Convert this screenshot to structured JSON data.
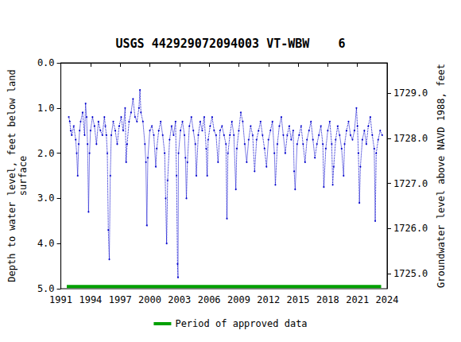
{
  "chart_data": {
    "type": "line",
    "title": "USGS 442929072094003 VT-WBW    6",
    "ylabel": "Depth to water level, feet below land\nsurface",
    "y2label": "Groundwater level above NAVD 1988, feet",
    "xlim": [
      1991,
      2024
    ],
    "xticks": [
      1991,
      1994,
      1997,
      2000,
      2003,
      2006,
      2009,
      2012,
      2015,
      2018,
      2021,
      2024
    ],
    "ylim": [
      5,
      0
    ],
    "yticks": [
      {
        "value": 0,
        "label": "0.0"
      },
      {
        "value": 1,
        "label": "1.0"
      },
      {
        "value": 2,
        "label": "2.0"
      },
      {
        "value": 3,
        "label": "3.0"
      },
      {
        "value": 4,
        "label": "4.0"
      },
      {
        "value": 5,
        "label": "5.0"
      }
    ],
    "y2lim": [
      1724.67,
      1729.67
    ],
    "y2ticks": [
      {
        "value": 1725,
        "label": "1725.0"
      },
      {
        "value": 1726,
        "label": "1726.0"
      },
      {
        "value": 1727,
        "label": "1727.0"
      },
      {
        "value": 1728,
        "label": "1728.0"
      },
      {
        "value": 1729,
        "label": "1729.0"
      }
    ],
    "grid": false,
    "legend": "bottom",
    "series": [
      {
        "color": "#0000cc",
        "marker": "circle",
        "line_style": "dotted",
        "x": [
          1991.8,
          1991.9,
          1992.0,
          1992.1,
          1992.3,
          1992.5,
          1992.6,
          1992.7,
          1992.8,
          1992.9,
          1993.0,
          1993.2,
          1993.4,
          1993.5,
          1993.6,
          1993.7,
          1993.8,
          1993.9,
          1994.0,
          1994.2,
          1994.4,
          1994.6,
          1994.8,
          1995.0,
          1995.2,
          1995.4,
          1995.5,
          1995.6,
          1995.7,
          1995.8,
          1995.9,
          1996.0,
          1996.1,
          1996.3,
          1996.5,
          1996.7,
          1996.9,
          1997.1,
          1997.3,
          1997.5,
          1997.6,
          1997.7,
          1997.9,
          1998.1,
          1998.3,
          1998.5,
          1998.7,
          1998.9,
          1999.0,
          1999.1,
          1999.3,
          1999.5,
          1999.6,
          1999.7,
          1999.8,
          2000.0,
          2000.2,
          2000.4,
          2000.6,
          2000.7,
          2000.9,
          2001.1,
          2001.3,
          2001.5,
          2001.6,
          2001.7,
          2001.8,
          2002.0,
          2002.2,
          2002.4,
          2002.6,
          2002.7,
          2002.8,
          2002.85,
          2002.9,
          2003.1,
          2003.3,
          2003.5,
          2003.6,
          2003.7,
          2003.8,
          2004.0,
          2004.2,
          2004.4,
          2004.6,
          2004.7,
          2004.9,
          2005.1,
          2005.3,
          2005.5,
          2005.7,
          2005.8,
          2005.9,
          2006.1,
          2006.3,
          2006.5,
          2006.7,
          2006.9,
          2007.1,
          2007.3,
          2007.5,
          2007.7,
          2007.8,
          2007.9,
          2008.1,
          2008.3,
          2008.5,
          2008.7,
          2008.8,
          2009.0,
          2009.2,
          2009.4,
          2009.6,
          2009.8,
          2010.0,
          2010.2,
          2010.4,
          2010.6,
          2010.8,
          2011.0,
          2011.2,
          2011.4,
          2011.6,
          2011.8,
          2012.0,
          2012.2,
          2012.4,
          2012.6,
          2012.7,
          2012.9,
          2013.1,
          2013.3,
          2013.5,
          2013.7,
          2013.9,
          2014.1,
          2014.3,
          2014.5,
          2014.6,
          2014.7,
          2014.9,
          2015.1,
          2015.3,
          2015.5,
          2015.7,
          2015.9,
          2016.1,
          2016.3,
          2016.5,
          2016.7,
          2016.9,
          2017.1,
          2017.3,
          2017.5,
          2017.6,
          2017.8,
          2018.0,
          2018.2,
          2018.4,
          2018.5,
          2018.6,
          2018.8,
          2019.0,
          2019.2,
          2019.4,
          2019.6,
          2019.7,
          2019.9,
          2020.1,
          2020.3,
          2020.5,
          2020.7,
          2020.9,
          2021.0,
          2021.1,
          2021.2,
          2021.3,
          2021.5,
          2021.7,
          2021.9,
          2022.1,
          2022.3,
          2022.5,
          2022.7,
          2022.8,
          2022.9,
          2023.1,
          2023.3,
          2023.5
        ],
        "values": [
          1.2,
          1.3,
          1.5,
          1.6,
          1.4,
          1.7,
          2.0,
          2.5,
          1.8,
          1.5,
          1.3,
          1.1,
          1.6,
          0.9,
          1.2,
          1.8,
          3.3,
          2.0,
          1.5,
          1.2,
          1.4,
          1.8,
          1.3,
          1.5,
          1.6,
          1.2,
          1.4,
          1.6,
          2.0,
          3.7,
          4.35,
          2.5,
          1.6,
          1.3,
          1.5,
          1.8,
          1.4,
          1.2,
          1.5,
          1.0,
          2.2,
          1.8,
          1.3,
          1.1,
          0.8,
          1.2,
          1.3,
          1.0,
          0.6,
          1.1,
          1.3,
          1.8,
          2.2,
          3.6,
          2.1,
          1.5,
          1.4,
          1.6,
          2.3,
          1.9,
          1.5,
          1.3,
          1.6,
          2.0,
          3.0,
          4.0,
          2.6,
          1.7,
          1.4,
          1.6,
          1.3,
          2.5,
          4.45,
          4.75,
          2.0,
          1.5,
          1.3,
          1.6,
          2.1,
          3.0,
          2.2,
          1.4,
          1.2,
          1.5,
          1.8,
          2.5,
          1.6,
          1.3,
          1.5,
          1.2,
          1.9,
          2.5,
          1.7,
          1.4,
          1.2,
          1.5,
          1.6,
          2.2,
          1.5,
          1.4,
          1.6,
          1.8,
          3.45,
          2.0,
          1.6,
          1.3,
          1.6,
          2.8,
          1.9,
          1.5,
          1.1,
          1.3,
          1.8,
          2.2,
          1.7,
          1.4,
          1.6,
          2.4,
          1.7,
          1.5,
          1.3,
          1.6,
          1.9,
          2.3,
          1.7,
          1.5,
          1.3,
          2.0,
          2.7,
          1.8,
          1.4,
          1.2,
          1.6,
          2.0,
          1.6,
          1.4,
          1.7,
          1.5,
          2.4,
          2.8,
          1.8,
          1.6,
          1.4,
          1.8,
          2.2,
          1.7,
          1.5,
          1.3,
          1.7,
          2.1,
          1.8,
          1.6,
          1.4,
          1.8,
          2.75,
          1.9,
          1.5,
          1.3,
          1.8,
          2.7,
          2.3,
          1.7,
          1.4,
          1.6,
          1.9,
          2.5,
          1.8,
          1.5,
          1.3,
          1.6,
          1.7,
          1.5,
          1.0,
          1.4,
          2.0,
          3.1,
          2.3,
          1.7,
          1.5,
          1.8,
          1.4,
          1.2,
          1.6,
          1.9,
          3.5,
          2.0,
          1.7,
          1.5,
          1.6
        ]
      },
      {
        "name": "Period of approved data",
        "color": "#00a000",
        "marker": "none",
        "line_style": "solid",
        "x": [
          1991.6,
          2023.4
        ],
        "values": [
          4.95,
          4.95
        ]
      }
    ]
  }
}
